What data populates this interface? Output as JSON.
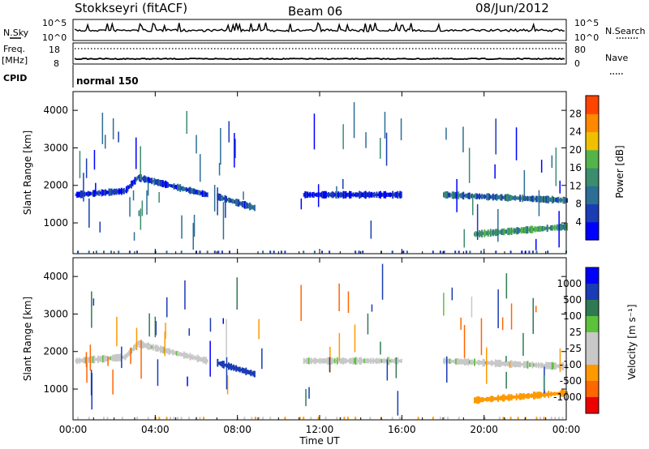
{
  "header": {
    "station": "Stokkseyri (fitACF)",
    "beam": "Beam 06",
    "date": "08/Jun/2012"
  },
  "status_panel": {
    "nsky_label": "N.Sky",
    "nsky_ticks": [
      "10^5",
      "10^0"
    ],
    "nsearch_label": "N.Search",
    "nsearch_ticks": [
      "10^5",
      "10^0"
    ],
    "freq_label": "Freq.",
    "freq_unit": "[MHz]",
    "freq_ticks": [
      "18",
      "8"
    ],
    "nave_label": "Nave",
    "nave_ticks": [
      "80",
      "0"
    ],
    "cpid_label": "CPID",
    "cpid_value": "normal 150"
  },
  "colors": {
    "power_scale": [
      "#0000ff",
      "#1a3cb4",
      "#2c6e96",
      "#3c8c6e",
      "#52b44a",
      "#f0c000",
      "#ff8800",
      "#ff4400",
      "#ee0000"
    ],
    "velocity_scale": [
      "#0000ff",
      "#1a3cb4",
      "#2f7a52",
      "#5cc23c",
      "#c8c8c8",
      "#c8c8c8",
      "#ff9900",
      "#ff6600",
      "#ee0000"
    ]
  },
  "chart_data": [
    {
      "type": "heatmap",
      "name": "power",
      "xlabel": "Time UT",
      "ylabel": "Slant Range [km]",
      "x_ticks": [
        "00:00",
        "04:00",
        "08:00",
        "12:00",
        "16:00",
        "20:00",
        "00:00"
      ],
      "x_range_hours": [
        0,
        24
      ],
      "y_ticks": [
        "1000",
        "2000",
        "3000",
        "4000"
      ],
      "y_range_km": [
        180,
        4500
      ],
      "colorbar": {
        "label": "Power [dB]",
        "ticks": [
          "4",
          "8",
          "12",
          "16",
          "20",
          "24",
          "28"
        ],
        "range": [
          0,
          32
        ]
      },
      "echo_bands": [
        {
          "t_start": 0.1,
          "t_end": 2.5,
          "range_start": 1750,
          "range_end": 1850,
          "value": 4
        },
        {
          "t_start": 2.5,
          "t_end": 3.2,
          "range_start": 1850,
          "range_end": 2250,
          "value": 6
        },
        {
          "t_start": 3.2,
          "t_end": 6.5,
          "range_start": 2200,
          "range_end": 1750,
          "value": 5
        },
        {
          "t_start": 7.0,
          "t_end": 8.8,
          "range_start": 1700,
          "range_end": 1400,
          "value": 7
        },
        {
          "t_start": 11.2,
          "t_end": 16.0,
          "range_start": 1750,
          "range_end": 1750,
          "value": 3
        },
        {
          "t_start": 18.0,
          "t_end": 24.0,
          "range_start": 1750,
          "range_end": 1600,
          "value": 9
        },
        {
          "t_start": 19.5,
          "t_end": 24.0,
          "range_start": 700,
          "range_end": 900,
          "value": 13
        }
      ]
    },
    {
      "type": "heatmap",
      "name": "velocity",
      "xlabel": "Time UT",
      "ylabel": "Slant Range [km]",
      "x_ticks": [
        "00:00",
        "04:00",
        "08:00",
        "12:00",
        "16:00",
        "20:00",
        "00:00"
      ],
      "x_range_hours": [
        0,
        24
      ],
      "y_ticks": [
        "1000",
        "2000",
        "3000",
        "4000"
      ],
      "y_range_km": [
        180,
        4500
      ],
      "colorbar": {
        "label": "Velocity [m s⁻¹]",
        "ticks": [
          "1000",
          "500",
          "100",
          "25",
          "-25",
          "-100",
          "-500",
          "-1000"
        ]
      },
      "echo_bands": [
        {
          "t_start": 0.1,
          "t_end": 2.5,
          "range_start": 1750,
          "range_end": 1850,
          "value": 0
        },
        {
          "t_start": 2.5,
          "t_end": 3.2,
          "range_start": 1850,
          "range_end": 2250,
          "value": 0
        },
        {
          "t_start": 3.2,
          "t_end": 6.5,
          "range_start": 2200,
          "range_end": 1750,
          "value": 0
        },
        {
          "t_start": 7.0,
          "t_end": 8.8,
          "range_start": 1700,
          "range_end": 1400,
          "value": 600
        },
        {
          "t_start": 11.2,
          "t_end": 16.0,
          "range_start": 1750,
          "range_end": 1750,
          "value": 0
        },
        {
          "t_start": 18.0,
          "t_end": 24.0,
          "range_start": 1750,
          "range_end": 1600,
          "value": 0
        },
        {
          "t_start": 19.5,
          "t_end": 24.0,
          "range_start": 700,
          "range_end": 900,
          "value": -200
        }
      ]
    }
  ]
}
